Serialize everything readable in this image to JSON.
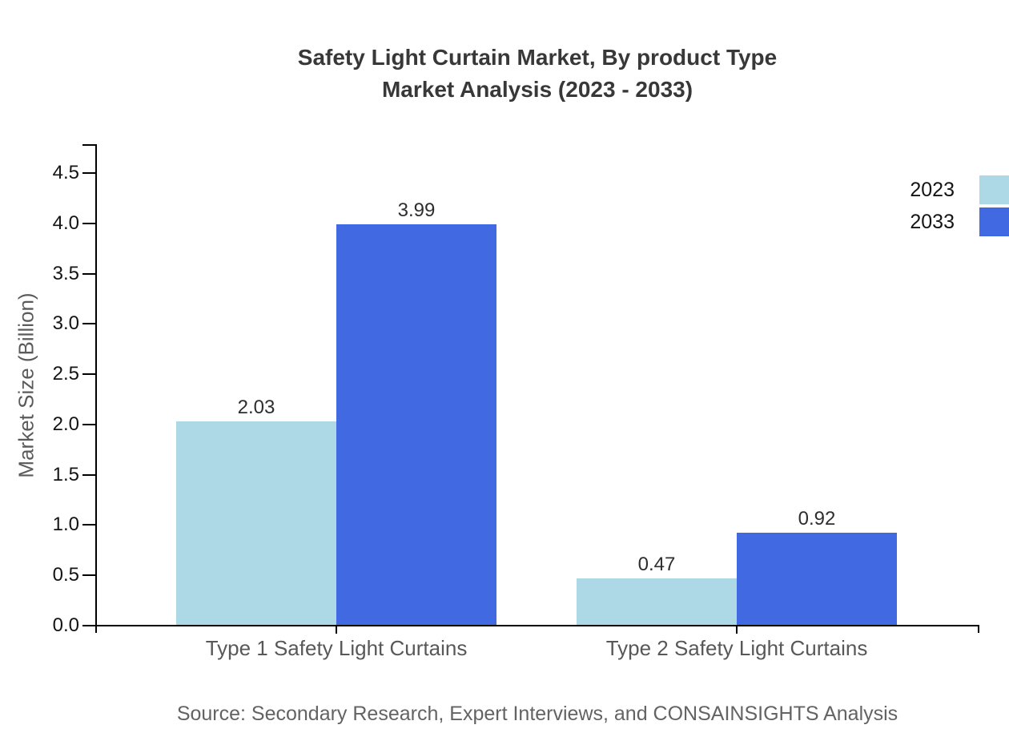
{
  "title": {
    "line1": "Safety Light Curtain Market, By product Type",
    "line2": "Market Analysis (2023 - 2033)"
  },
  "source": "Source: Secondary Research, Expert Interviews, and CONSAINSIGHTS Analysis",
  "legend": {
    "position": "top-right",
    "items": [
      {
        "label": "2023",
        "color": "#ADD8E6"
      },
      {
        "label": "2033",
        "color": "#4169E1"
      }
    ]
  },
  "chart_data": {
    "type": "bar",
    "title": "Safety Light Curtain Market, By product Type Market Analysis (2023 - 2033)",
    "categories": [
      "Type 1 Safety Light Curtains",
      "Type 2 Safety Light Curtains"
    ],
    "series": [
      {
        "name": "2023",
        "color": "#ADD8E6",
        "values": [
          2.03,
          0.47
        ]
      },
      {
        "name": "2033",
        "color": "#4169E1",
        "values": [
          3.99,
          0.92
        ]
      }
    ],
    "xlabel": "",
    "ylabel": "Market Size (Billion)",
    "ylim": [
      0,
      4.5
    ],
    "ytick_step": 0.5,
    "ytick_labels": [
      "0.0",
      "0.5",
      "1.0",
      "1.5",
      "2.0",
      "2.5",
      "3.0",
      "3.5",
      "4.0",
      "4.5"
    ],
    "grid": false,
    "value_labels": true,
    "value_label_format": "0.00",
    "axis_color": "#000000",
    "legend_position": "top-right"
  }
}
